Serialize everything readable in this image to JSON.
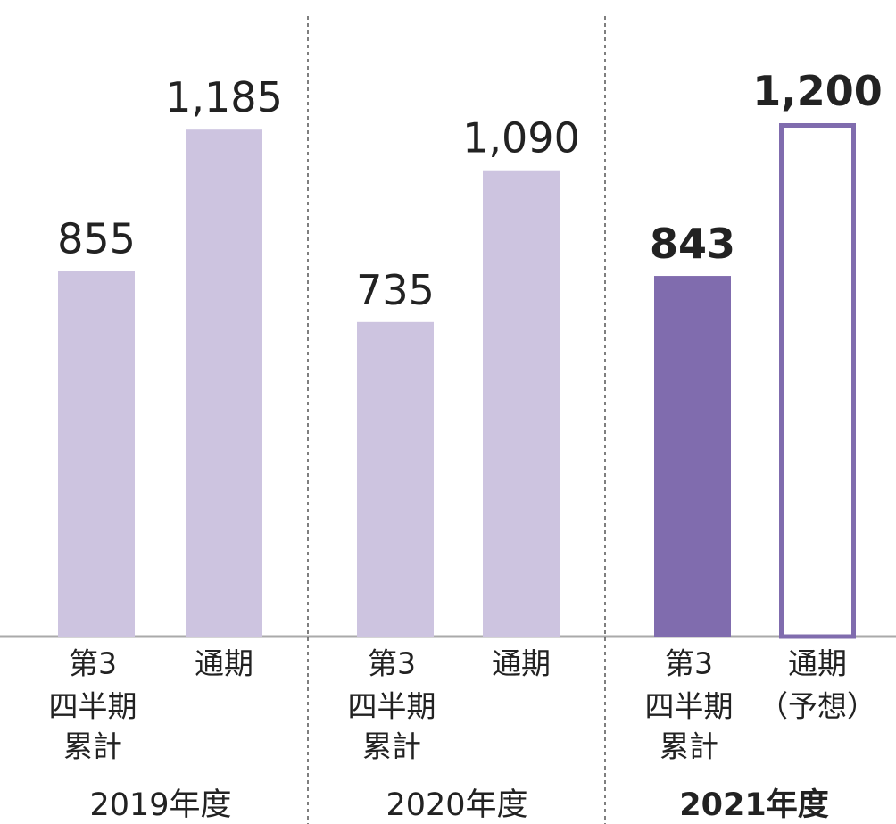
{
  "chart_data": {
    "type": "bar",
    "groups": [
      {
        "name": "2019年度",
        "bold": false,
        "bars": [
          {
            "category": [
              "第3",
              "四半期",
              "累計"
            ],
            "value": 855,
            "value_label": "855",
            "color": "#cdc4e0",
            "outline": false
          },
          {
            "category": [
              "通期"
            ],
            "value": 1185,
            "value_label": "1,185",
            "color": "#cdc4e0",
            "outline": false
          }
        ]
      },
      {
        "name": "2020年度",
        "bold": false,
        "bars": [
          {
            "category": [
              "第3",
              "四半期",
              "累計"
            ],
            "value": 735,
            "value_label": "735",
            "color": "#cdc4e0",
            "outline": false
          },
          {
            "category": [
              "通期"
            ],
            "value": 1090,
            "value_label": "1,090",
            "color": "#cdc4e0",
            "outline": false
          }
        ]
      },
      {
        "name": "2021年度",
        "bold": true,
        "bars": [
          {
            "category": [
              "第3",
              "四半期",
              "累計"
            ],
            "value": 843,
            "value_label": "843",
            "color": "#806cae",
            "outline": false
          },
          {
            "category": [
              "通期",
              "（予想）"
            ],
            "value": 1200,
            "value_label": "1,200",
            "color": "#806cae",
            "outline": true
          }
        ]
      }
    ]
  }
}
